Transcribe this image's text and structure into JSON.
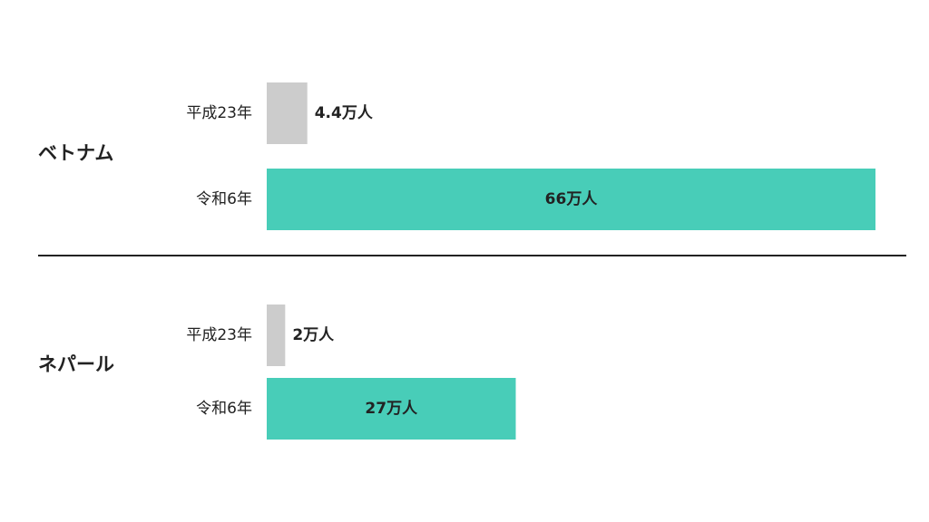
{
  "chart_data": [
    {
      "type": "bar",
      "title": "ベトナム",
      "categories": [
        "平成23年",
        "令和6年"
      ],
      "values": [
        4.4,
        66
      ],
      "value_labels": [
        "4.4万人",
        "66万人"
      ],
      "colors": [
        "#cccccc",
        "#48cdb8"
      ]
    },
    {
      "type": "bar",
      "title": "ネパール",
      "categories": [
        "平成23年",
        "令和6年"
      ],
      "values": [
        2,
        27
      ],
      "value_labels": [
        "2万人",
        "27万人"
      ],
      "colors": [
        "#cccccc",
        "#48cdb8"
      ]
    }
  ]
}
